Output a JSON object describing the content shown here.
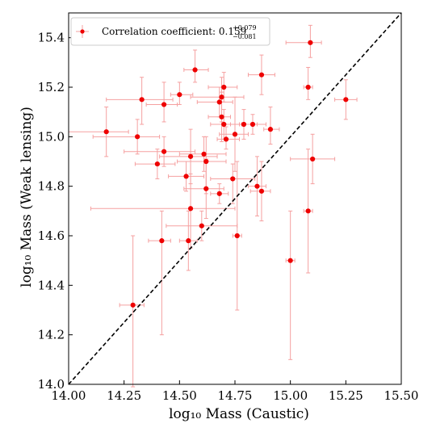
{
  "chart_data": {
    "type": "scatter",
    "title": "",
    "xlabel": "log₁₀ Mass (Caustic)",
    "ylabel": "log₁₀ Mass (Weak lensing)",
    "xlim": [
      14.0,
      15.5
    ],
    "ylim": [
      14.0,
      15.5
    ],
    "x_ticks": [
      "14.00",
      "14.25",
      "14.50",
      "14.75",
      "15.00",
      "15.25",
      "15.50"
    ],
    "y_ticks": [
      "14.0",
      "14.2",
      "14.4",
      "14.6",
      "14.8",
      "15.0",
      "15.2",
      "15.4"
    ],
    "x_tick_values": [
      14.0,
      14.25,
      14.5,
      14.75,
      15.0,
      15.25,
      15.5
    ],
    "y_tick_values": [
      14.0,
      14.2,
      14.4,
      14.6,
      14.8,
      15.0,
      15.2,
      15.4
    ],
    "grid": false,
    "legend_position": "top-left",
    "legend": {
      "prefix": "Correlation coefficient: ",
      "value": "0.159",
      "plus": "+0.079",
      "minus": "−0.081"
    },
    "reference_line": {
      "style": "dashed",
      "color": "#000000",
      "from": [
        14.0,
        14.0
      ],
      "to": [
        15.5,
        15.5
      ]
    },
    "marker_color": "#ee0000",
    "errorbar_color": "#f5a0a0",
    "points": [
      {
        "x": 14.17,
        "y": 15.02,
        "xerr": [
          0.17,
          0.1
        ],
        "yerr": [
          0.1,
          0.1
        ]
      },
      {
        "x": 14.29,
        "y": 14.32,
        "xerr": [
          0.06,
          0.05
        ],
        "yerr": [
          0.33,
          0.28
        ]
      },
      {
        "x": 14.31,
        "y": 15.0,
        "xerr": [
          0.2,
          0.1
        ],
        "yerr": [
          0.07,
          0.07
        ]
      },
      {
        "x": 14.33,
        "y": 15.15,
        "xerr": [
          0.16,
          0.14
        ],
        "yerr": [
          0.1,
          0.09
        ]
      },
      {
        "x": 14.4,
        "y": 14.89,
        "xerr": [
          0.1,
          0.08
        ],
        "yerr": [
          0.06,
          0.06
        ]
      },
      {
        "x": 14.42,
        "y": 14.58,
        "xerr": [
          0.06,
          0.04
        ],
        "yerr": [
          0.38,
          0.12
        ]
      },
      {
        "x": 14.43,
        "y": 15.13,
        "xerr": [
          0.08,
          0.06
        ],
        "yerr": [
          0.07,
          0.09
        ]
      },
      {
        "x": 14.43,
        "y": 14.94,
        "xerr": [
          0.18,
          0.14
        ],
        "yerr": [
          0.06,
          0.06
        ]
      },
      {
        "x": 14.5,
        "y": 15.17,
        "xerr": [
          0.04,
          0.06
        ],
        "yerr": [
          0.04,
          0.05
        ]
      },
      {
        "x": 14.53,
        "y": 14.84,
        "xerr": [
          0.08,
          0.08
        ],
        "yerr": [
          0.06,
          0.06
        ]
      },
      {
        "x": 14.54,
        "y": 14.58,
        "xerr": [
          0.04,
          0.04
        ],
        "yerr": [
          0.12,
          0.12
        ]
      },
      {
        "x": 14.55,
        "y": 14.92,
        "xerr": [
          0.14,
          0.12
        ],
        "yerr": [
          0.11,
          0.11
        ]
      },
      {
        "x": 14.55,
        "y": 14.71,
        "xerr": [
          0.45,
          0.2
        ],
        "yerr": [
          0.16,
          0.14
        ]
      },
      {
        "x": 14.57,
        "y": 15.27,
        "xerr": [
          0.05,
          0.06
        ],
        "yerr": [
          0.05,
          0.08
        ]
      },
      {
        "x": 14.6,
        "y": 14.64,
        "xerr": [
          0.16,
          0.16
        ],
        "yerr": [
          0.06,
          0.06
        ]
      },
      {
        "x": 14.61,
        "y": 14.93,
        "xerr": [
          0.11,
          0.1
        ],
        "yerr": [
          0.07,
          0.07
        ]
      },
      {
        "x": 14.62,
        "y": 14.9,
        "xerr": [
          0.13,
          0.09
        ],
        "yerr": [
          0.13,
          0.1
        ]
      },
      {
        "x": 14.62,
        "y": 14.79,
        "xerr": [
          0.1,
          0.08
        ],
        "yerr": [
          0.12,
          0.12
        ]
      },
      {
        "x": 14.68,
        "y": 14.77,
        "xerr": [
          0.04,
          0.04
        ],
        "yerr": [
          0.04,
          0.04
        ]
      },
      {
        "x": 14.68,
        "y": 15.14,
        "xerr": [
          0.1,
          0.06
        ],
        "yerr": [
          0.06,
          0.06
        ]
      },
      {
        "x": 14.69,
        "y": 15.16,
        "xerr": [
          0.14,
          0.1
        ],
        "yerr": [
          0.1,
          0.08
        ]
      },
      {
        "x": 14.69,
        "y": 15.08,
        "xerr": [
          0.06,
          0.04
        ],
        "yerr": [
          0.1,
          0.1
        ]
      },
      {
        "x": 14.7,
        "y": 15.05,
        "xerr": [
          0.06,
          0.08
        ],
        "yerr": [
          0.06,
          0.06
        ]
      },
      {
        "x": 14.7,
        "y": 15.2,
        "xerr": [
          0.07,
          0.06
        ],
        "yerr": [
          0.06,
          0.06
        ]
      },
      {
        "x": 14.71,
        "y": 14.99,
        "xerr": [
          0.04,
          0.06
        ],
        "yerr": [
          0.04,
          0.05
        ]
      },
      {
        "x": 14.74,
        "y": 14.83,
        "xerr": [
          0.1,
          0.1
        ],
        "yerr": [
          0.1,
          0.06
        ]
      },
      {
        "x": 14.75,
        "y": 15.01,
        "xerr": [
          0.07,
          0.06
        ],
        "yerr": [
          0.15,
          0.15
        ]
      },
      {
        "x": 14.76,
        "y": 14.6,
        "xerr": [
          0.02,
          0.02
        ],
        "yerr": [
          0.3,
          0.3
        ]
      },
      {
        "x": 14.79,
        "y": 15.05,
        "xerr": [
          0.06,
          0.06
        ],
        "yerr": [
          0.06,
          0.06
        ]
      },
      {
        "x": 14.83,
        "y": 15.05,
        "xerr": [
          0.06,
          0.06
        ],
        "yerr": [
          0.04,
          0.04
        ]
      },
      {
        "x": 14.85,
        "y": 14.8,
        "xerr": [
          0.04,
          0.04
        ],
        "yerr": [
          0.12,
          0.12
        ]
      },
      {
        "x": 14.87,
        "y": 14.78,
        "xerr": [
          0.05,
          0.04
        ],
        "yerr": [
          0.12,
          0.12
        ]
      },
      {
        "x": 14.87,
        "y": 15.25,
        "xerr": [
          0.06,
          0.06
        ],
        "yerr": [
          0.08,
          0.08
        ]
      },
      {
        "x": 14.91,
        "y": 15.03,
        "xerr": [
          0.03,
          0.04
        ],
        "yerr": [
          0.06,
          0.09
        ]
      },
      {
        "x": 15.0,
        "y": 14.5,
        "xerr": [
          0.02,
          0.02
        ],
        "yerr": [
          0.4,
          0.2
        ]
      },
      {
        "x": 15.08,
        "y": 15.2,
        "xerr": [
          0.02,
          0.02
        ],
        "yerr": [
          0.05,
          0.08
        ]
      },
      {
        "x": 15.08,
        "y": 14.7,
        "xerr": [
          0.02,
          0.02
        ],
        "yerr": [
          0.25,
          0.25
        ]
      },
      {
        "x": 15.09,
        "y": 15.38,
        "xerr": [
          0.11,
          0.05
        ],
        "yerr": [
          0.06,
          0.07
        ]
      },
      {
        "x": 15.1,
        "y": 14.91,
        "xerr": [
          0.1,
          0.1
        ],
        "yerr": [
          0.1,
          0.1
        ]
      },
      {
        "x": 15.25,
        "y": 15.15,
        "xerr": [
          0.05,
          0.05
        ],
        "yerr": [
          0.08,
          0.08
        ]
      }
    ]
  }
}
